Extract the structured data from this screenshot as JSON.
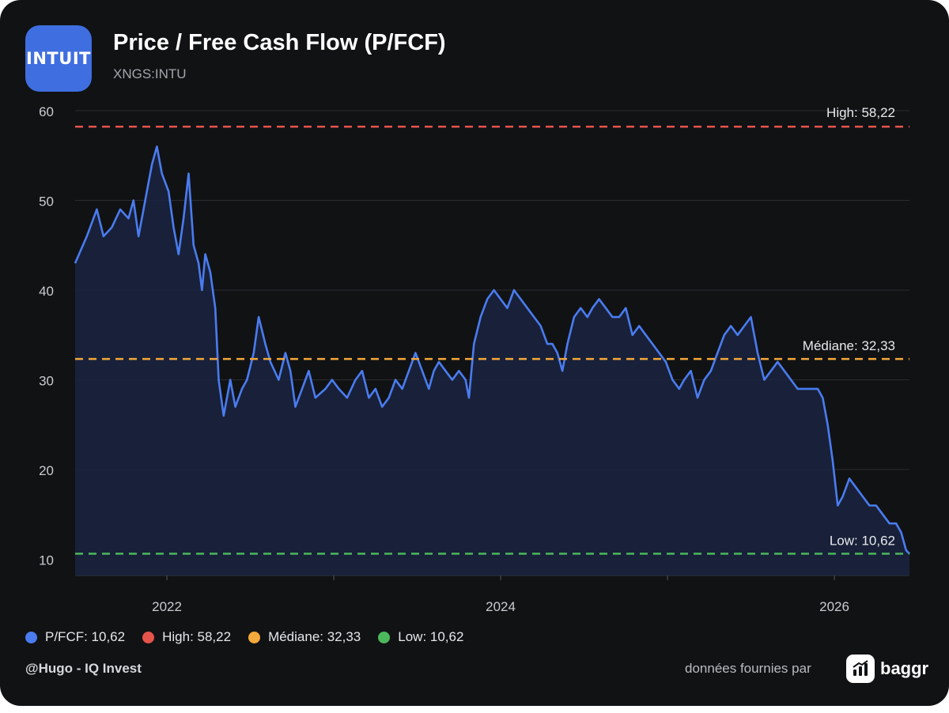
{
  "header": {
    "logo_text": "INTUIT",
    "title": "Price / Free Cash Flow (P/FCF)",
    "ticker": "XNGS:INTU"
  },
  "colors": {
    "background": "#111214",
    "series": "#4a7cf0",
    "high": "#e5534b",
    "median": "#f2a83b",
    "low": "#4cb85c",
    "grid": "#2a2c31",
    "axis_text": "#c9cbd0"
  },
  "chart_data": {
    "type": "area",
    "xlim": [
      2021.45,
      2026.45
    ],
    "ylim": [
      8.2,
      60
    ],
    "grid": true,
    "y_ticks": [
      10,
      20,
      30,
      40,
      50,
      60
    ],
    "x_ticks": [
      {
        "value": 2022,
        "label": "2022"
      },
      {
        "value": 2024,
        "label": "2024"
      },
      {
        "value": 2026,
        "label": "2026"
      }
    ],
    "series": [
      {
        "name": "P/FCF",
        "points": [
          [
            2021.45,
            43
          ],
          [
            2021.52,
            46
          ],
          [
            2021.58,
            49
          ],
          [
            2021.62,
            46
          ],
          [
            2021.67,
            47
          ],
          [
            2021.72,
            49
          ],
          [
            2021.77,
            48
          ],
          [
            2021.8,
            50
          ],
          [
            2021.83,
            46
          ],
          [
            2021.88,
            51
          ],
          [
            2021.91,
            54
          ],
          [
            2021.94,
            56
          ],
          [
            2021.97,
            53
          ],
          [
            2022.01,
            51
          ],
          [
            2022.04,
            47
          ],
          [
            2022.07,
            44
          ],
          [
            2022.1,
            48
          ],
          [
            2022.13,
            53
          ],
          [
            2022.16,
            45
          ],
          [
            2022.19,
            43
          ],
          [
            2022.21,
            40
          ],
          [
            2022.23,
            44
          ],
          [
            2022.26,
            42
          ],
          [
            2022.29,
            38
          ],
          [
            2022.31,
            30
          ],
          [
            2022.34,
            26
          ],
          [
            2022.38,
            30
          ],
          [
            2022.41,
            27
          ],
          [
            2022.45,
            29
          ],
          [
            2022.48,
            30
          ],
          [
            2022.52,
            33
          ],
          [
            2022.55,
            37
          ],
          [
            2022.59,
            34
          ],
          [
            2022.62,
            32
          ],
          [
            2022.67,
            30
          ],
          [
            2022.71,
            33
          ],
          [
            2022.74,
            31
          ],
          [
            2022.77,
            27
          ],
          [
            2022.81,
            29
          ],
          [
            2022.85,
            31
          ],
          [
            2022.89,
            28
          ],
          [
            2022.95,
            29
          ],
          [
            2022.99,
            30
          ],
          [
            2023.03,
            29
          ],
          [
            2023.08,
            28
          ],
          [
            2023.13,
            30
          ],
          [
            2023.17,
            31
          ],
          [
            2023.21,
            28
          ],
          [
            2023.25,
            29
          ],
          [
            2023.29,
            27
          ],
          [
            2023.33,
            28
          ],
          [
            2023.37,
            30
          ],
          [
            2023.41,
            29
          ],
          [
            2023.45,
            31
          ],
          [
            2023.49,
            33
          ],
          [
            2023.53,
            31
          ],
          [
            2023.57,
            29
          ],
          [
            2023.6,
            31
          ],
          [
            2023.63,
            32
          ],
          [
            2023.67,
            31
          ],
          [
            2023.71,
            30
          ],
          [
            2023.75,
            31
          ],
          [
            2023.79,
            30
          ],
          [
            2023.81,
            28
          ],
          [
            2023.84,
            34
          ],
          [
            2023.88,
            37
          ],
          [
            2023.92,
            39
          ],
          [
            2023.96,
            40
          ],
          [
            2024.0,
            39
          ],
          [
            2024.04,
            38
          ],
          [
            2024.08,
            40
          ],
          [
            2024.12,
            39
          ],
          [
            2024.16,
            38
          ],
          [
            2024.2,
            37
          ],
          [
            2024.24,
            36
          ],
          [
            2024.28,
            34
          ],
          [
            2024.31,
            34
          ],
          [
            2024.34,
            33
          ],
          [
            2024.37,
            31
          ],
          [
            2024.4,
            34
          ],
          [
            2024.44,
            37
          ],
          [
            2024.48,
            38
          ],
          [
            2024.52,
            37
          ],
          [
            2024.55,
            38
          ],
          [
            2024.59,
            39
          ],
          [
            2024.63,
            38
          ],
          [
            2024.67,
            37
          ],
          [
            2024.71,
            37
          ],
          [
            2024.75,
            38
          ],
          [
            2024.79,
            35
          ],
          [
            2024.83,
            36
          ],
          [
            2024.87,
            35
          ],
          [
            2024.91,
            34
          ],
          [
            2024.95,
            33
          ],
          [
            2024.99,
            32
          ],
          [
            2025.03,
            30
          ],
          [
            2025.07,
            29
          ],
          [
            2025.1,
            30
          ],
          [
            2025.14,
            31
          ],
          [
            2025.18,
            28
          ],
          [
            2025.22,
            30
          ],
          [
            2025.26,
            31
          ],
          [
            2025.3,
            33
          ],
          [
            2025.34,
            35
          ],
          [
            2025.38,
            36
          ],
          [
            2025.42,
            35
          ],
          [
            2025.46,
            36
          ],
          [
            2025.5,
            37
          ],
          [
            2025.54,
            33
          ],
          [
            2025.58,
            30
          ],
          [
            2025.62,
            31
          ],
          [
            2025.66,
            32
          ],
          [
            2025.7,
            31
          ],
          [
            2025.74,
            30
          ],
          [
            2025.78,
            29
          ],
          [
            2025.82,
            29
          ],
          [
            2025.86,
            29
          ],
          [
            2025.9,
            29
          ],
          [
            2025.93,
            28
          ],
          [
            2025.96,
            25
          ],
          [
            2025.99,
            21
          ],
          [
            2026.02,
            16
          ],
          [
            2026.05,
            17
          ],
          [
            2026.09,
            19
          ],
          [
            2026.13,
            18
          ],
          [
            2026.17,
            17
          ],
          [
            2026.21,
            16
          ],
          [
            2026.25,
            16
          ],
          [
            2026.29,
            15
          ],
          [
            2026.33,
            14
          ],
          [
            2026.37,
            14
          ],
          [
            2026.4,
            13
          ],
          [
            2026.43,
            11
          ],
          [
            2026.45,
            10.62
          ]
        ]
      }
    ],
    "reference_lines": [
      {
        "name": "High",
        "value": 58.22,
        "label": "High: 58,22",
        "color": "#e5534b"
      },
      {
        "name": "Médiane",
        "value": 32.33,
        "label": "Médiane: 32,33",
        "color": "#f2a83b"
      },
      {
        "name": "Low",
        "value": 10.62,
        "label": "Low: 10,62",
        "color": "#4cb85c"
      }
    ]
  },
  "legend": {
    "placement": "bottom-left",
    "items": [
      {
        "label": "P/FCF: 10,62",
        "color": "#4a7cf0"
      },
      {
        "label": "High: 58,22",
        "color": "#e5534b"
      },
      {
        "label": "Médiane: 32,33",
        "color": "#f2a83b"
      },
      {
        "label": "Low: 10,62",
        "color": "#4cb85c"
      }
    ]
  },
  "footer": {
    "author": "@Hugo - IQ Invest",
    "credit": "données fournies par",
    "brand": "baggr"
  }
}
